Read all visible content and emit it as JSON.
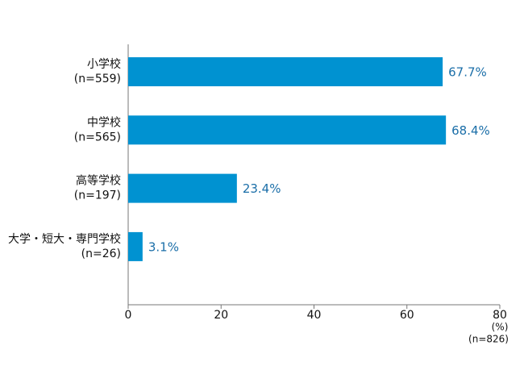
{
  "chart_data": {
    "type": "hbar",
    "categories": [
      [
        "小学校",
        "(n=559)"
      ],
      [
        "中学校",
        "(n=565)"
      ],
      [
        "高等学校",
        "(n=197)"
      ],
      [
        "大学・短大・専門学校",
        "(n=26)"
      ]
    ],
    "values": [
      67.7,
      68.4,
      23.4,
      3.1
    ],
    "value_labels": [
      "67.7%",
      "68.4%",
      "23.4%",
      "3.1%"
    ],
    "color": "#0092d1",
    "xlim": [
      0,
      80
    ],
    "xticks": [
      0,
      20,
      40,
      60,
      80
    ],
    "unit_label": "(%)",
    "sample_label": "(n=826)"
  }
}
